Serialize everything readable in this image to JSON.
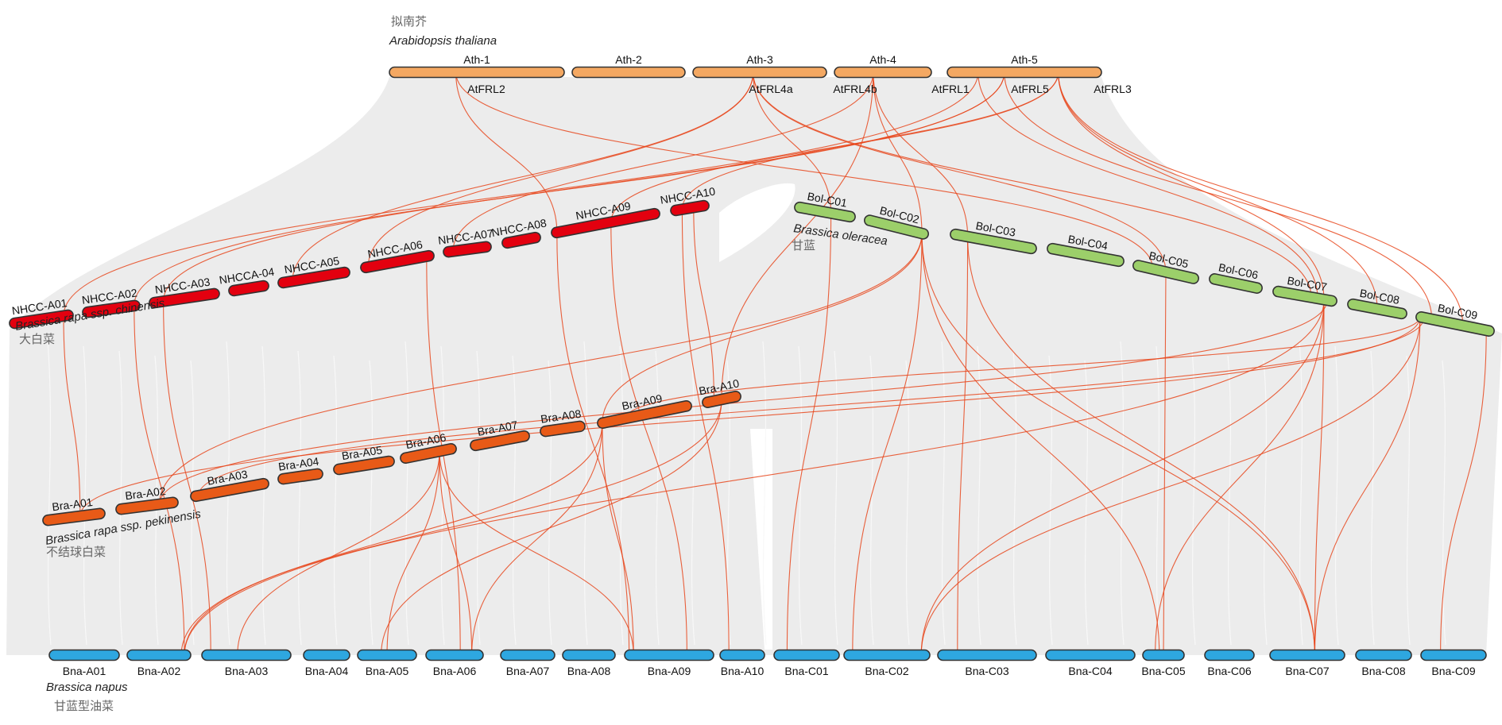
{
  "colors": {
    "ath": "#f4a862",
    "nhcc": "#e3000f",
    "bra": "#e85a17",
    "bol": "#9ccf6a",
    "bna": "#2ea7e0",
    "band": "#ececec",
    "link": "#e8461c"
  },
  "species": {
    "ath": {
      "cn": "拟南芥",
      "latin": "Arabidopsis thaliana"
    },
    "nhcc": {
      "latin": "Brassica rapa ssp. chinensis",
      "cn": "大白菜"
    },
    "bra": {
      "latin": "Brassica rapa ssp. pekinensis",
      "cn": "不结球白菜"
    },
    "bol": {
      "latin": "Brassica oleracea",
      "cn": "甘蓝"
    },
    "bna": {
      "latin": "Brassica napus",
      "cn": "甘蓝型油菜"
    }
  },
  "genomes": {
    "ath": [
      "Ath-1",
      "Ath-2",
      "Ath-3",
      "Ath-4",
      "Ath-5"
    ],
    "nhcc": [
      "NHCC-A01",
      "NHCC-A02",
      "NHCC-A03",
      "NHCCA-04",
      "NHCC-A05",
      "NHCC-A06",
      "NHCC-A07",
      "NHCC-A08",
      "NHCC-A09",
      "NHCC-A10"
    ],
    "bra": [
      "Bra-A01",
      "Bra-A02",
      "Bra-A03",
      "Bra-A04",
      "Bra-A05",
      "Bra-A06",
      "Bra-A07",
      "Bra-A08",
      "Bra-A09",
      "Bra-A10"
    ],
    "bol": [
      "Bol-C01",
      "Bol-C02",
      "Bol-C03",
      "Bol-C04",
      "Bol-C05",
      "Bol-C06",
      "Bol-C07",
      "Bol-C08",
      "Bol-C09"
    ],
    "bna": [
      "Bna-A01",
      "Bna-A02",
      "Bna-A03",
      "Bna-A04",
      "Bna-A05",
      "Bna-A06",
      "Bna-A07",
      "Bna-A08",
      "Bna-A09",
      "Bna-A10",
      "Bna-C01",
      "Bna-C02",
      "Bna-C03",
      "Bna-C04",
      "Bna-C05",
      "Bna-C06",
      "Bna-C07",
      "Bna-C08",
      "Bna-C09"
    ]
  },
  "genes": [
    {
      "name": "AtFRL2",
      "chr": "Ath-1"
    },
    {
      "name": "AtFRL4a",
      "chr": "Ath-3"
    },
    {
      "name": "AtFRL4b",
      "chr": "Ath-4"
    },
    {
      "name": "AtFRL1",
      "chr": "Ath-5"
    },
    {
      "name": "AtFRL5",
      "chr": "Ath-5"
    },
    {
      "name": "AtFRL3",
      "chr": "Ath-5"
    }
  ],
  "links": [
    [
      "Ath-1",
      0.38,
      "NHCC-A09",
      0.05
    ],
    [
      "Ath-1",
      0.38,
      "Bol-C05",
      0.3
    ],
    [
      "Ath-3",
      0.45,
      "NHCC-A06",
      0.1
    ],
    [
      "Ath-3",
      0.45,
      "NHCC-A05",
      0.2
    ],
    [
      "Ath-3",
      0.45,
      "Bol-C01",
      0.6
    ],
    [
      "Ath-3",
      0.45,
      "Bol-C05",
      0.5
    ],
    [
      "Ath-3",
      0.45,
      "Bol-C07",
      0.6
    ],
    [
      "Ath-4",
      0.4,
      "NHCC-A07",
      0.2
    ],
    [
      "Ath-4",
      0.4,
      "Bol-C02",
      0.9
    ],
    [
      "Ath-4",
      0.4,
      "Bol-C03",
      0.2
    ],
    [
      "Ath-4",
      0.4,
      "Bra-A10",
      0.5
    ],
    [
      "Ath-5",
      0.2,
      "NHCC-A01",
      0.85
    ],
    [
      "Ath-5",
      0.2,
      "Bol-C07",
      0.7
    ],
    [
      "Ath-5",
      0.37,
      "NHCC-A02",
      0.9
    ],
    [
      "Ath-5",
      0.37,
      "NHCC-A03",
      0.2
    ],
    [
      "Ath-5",
      0.37,
      "Bol-C09",
      0.2
    ],
    [
      "Ath-5",
      0.72,
      "NHCC-A09",
      0.55
    ],
    [
      "Ath-5",
      0.72,
      "NHCC-A10",
      0.3
    ],
    [
      "Ath-5",
      0.72,
      "Bol-C07",
      0.8
    ],
    [
      "Ath-5",
      0.72,
      "Bol-C09",
      0.6
    ],
    [
      "Ath-5",
      0.72,
      "Bol-C08",
      0.5
    ],
    [
      "NHCC-A01",
      0.85,
      "Bra-A01",
      0.6
    ],
    [
      "NHCC-A02",
      0.9,
      "Bna-A02",
      0.9
    ],
    [
      "NHCC-A03",
      0.2,
      "Bna-A03",
      0.1
    ],
    [
      "NHCC-A06",
      0.9,
      "Bna-A06",
      0.6
    ],
    [
      "NHCC-A09",
      0.05,
      "Bna-A09",
      0.05
    ],
    [
      "NHCC-A09",
      0.55,
      "Bna-A09",
      0.7
    ],
    [
      "NHCC-A10",
      0.3,
      "Bna-A10",
      0.2
    ],
    [
      "NHCC-A10",
      0.6,
      "Bra-A10",
      0.3
    ],
    [
      "Bra-A01",
      0.6,
      "Bol-C09",
      0.05
    ],
    [
      "Bra-A02",
      0.7,
      "Bol-C07",
      0.85
    ],
    [
      "Bra-A02",
      0.7,
      "Bol-C02",
      0.9
    ],
    [
      "Bra-A03",
      0.1,
      "Bol-C09",
      0.1
    ],
    [
      "Bra-A06",
      0.7,
      "Bna-A09",
      0.1
    ],
    [
      "Bra-A06",
      0.7,
      "Bna-A03",
      0.4
    ],
    [
      "Bra-A06",
      0.7,
      "Bna-A05",
      0.5
    ],
    [
      "Bra-A06",
      0.7,
      "Bna-A06",
      0.8
    ],
    [
      "Bra-A09",
      0.05,
      "Bna-A02",
      0.9
    ],
    [
      "Bra-A09",
      0.05,
      "Bna-A09",
      0.1
    ],
    [
      "Bra-A09",
      0.05,
      "Bna-A06",
      0.8
    ],
    [
      "Bra-A09",
      0.05,
      "Bol-C02",
      0.9
    ],
    [
      "Bra-A10",
      0.5,
      "Bna-A05",
      0.4
    ],
    [
      "Bra-A10",
      0.5,
      "Bna-A02",
      0.85
    ],
    [
      "Bol-C01",
      0.6,
      "Bna-C01",
      0.2
    ],
    [
      "Bol-C02",
      0.9,
      "Bna-C02",
      0.1
    ],
    [
      "Bol-C02",
      0.9,
      "Bna-C05",
      0.4
    ],
    [
      "Bol-C02",
      0.9,
      "Bna-C07",
      0.6
    ],
    [
      "Bol-C03",
      0.2,
      "Bna-C03",
      0.2
    ],
    [
      "Bol-C03",
      0.2,
      "Bna-C07",
      0.6
    ],
    [
      "Bol-C05",
      0.5,
      "Bna-C05",
      0.5
    ],
    [
      "Bol-C07",
      0.8,
      "Bna-C07",
      0.6
    ],
    [
      "Bol-C07",
      0.8,
      "Bna-C02",
      0.9
    ],
    [
      "Bol-C07",
      0.8,
      "Bna-A02",
      0.9
    ],
    [
      "Bol-C07",
      0.8,
      "Bna-C05",
      0.3
    ],
    [
      "Bol-C09",
      0.05,
      "Bna-C07",
      0.6
    ],
    [
      "Bol-C09",
      0.05,
      "Bna-C02",
      0.9
    ],
    [
      "Bol-C09",
      0.05,
      "Bra-A09",
      0.3
    ],
    [
      "Bol-C09",
      0.9,
      "Bna-C09",
      0.3
    ]
  ]
}
